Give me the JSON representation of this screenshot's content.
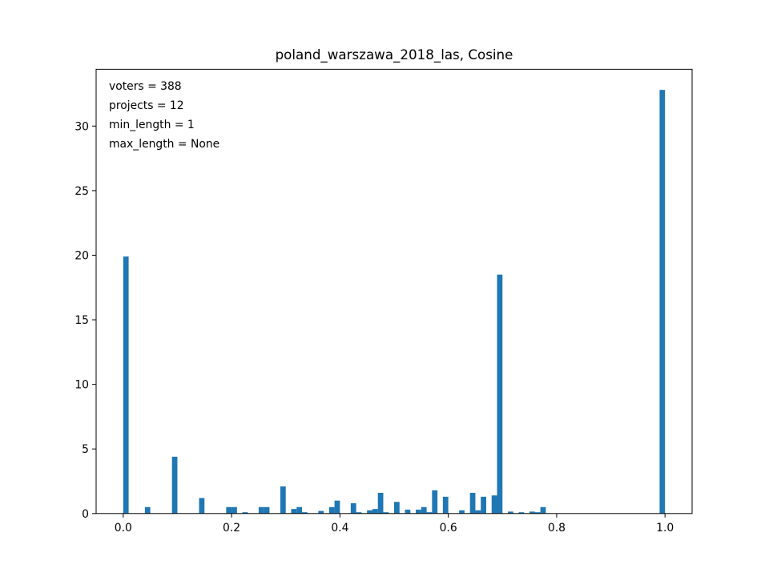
{
  "chart_data": {
    "type": "bar",
    "title": "poland_warszawa_2018_las, Cosine",
    "xlabel": "",
    "ylabel": "",
    "xlim": [
      -0.05,
      1.05
    ],
    "ylim": [
      0,
      34.4
    ],
    "bar_width": 0.01,
    "bar_color": "#1f77b4",
    "grid": false,
    "annotations": [
      "voters = 388",
      "projects = 12",
      "min_length = 1",
      "max_length = None"
    ],
    "x_ticks": [
      {
        "value": 0.0,
        "label": "0.0"
      },
      {
        "value": 0.2,
        "label": "0.2"
      },
      {
        "value": 0.4,
        "label": "0.4"
      },
      {
        "value": 0.6,
        "label": "0.6"
      },
      {
        "value": 0.8,
        "label": "0.8"
      },
      {
        "value": 1.0,
        "label": "1.0"
      }
    ],
    "y_ticks": [
      {
        "value": 0,
        "label": "0"
      },
      {
        "value": 5,
        "label": "5"
      },
      {
        "value": 10,
        "label": "10"
      },
      {
        "value": 15,
        "label": "15"
      },
      {
        "value": 20,
        "label": "20"
      },
      {
        "value": 25,
        "label": "25"
      },
      {
        "value": 30,
        "label": "30"
      }
    ],
    "x": [
      0.005,
      0.045,
      0.095,
      0.145,
      0.195,
      0.205,
      0.225,
      0.255,
      0.265,
      0.295,
      0.315,
      0.325,
      0.335,
      0.365,
      0.385,
      0.395,
      0.425,
      0.435,
      0.455,
      0.465,
      0.475,
      0.485,
      0.505,
      0.525,
      0.545,
      0.555,
      0.565,
      0.575,
      0.595,
      0.625,
      0.645,
      0.655,
      0.665,
      0.685,
      0.695,
      0.715,
      0.735,
      0.755,
      0.765,
      0.775,
      0.995
    ],
    "values": [
      19.9,
      0.5,
      4.4,
      1.2,
      0.5,
      0.5,
      0.1,
      0.5,
      0.5,
      2.1,
      0.35,
      0.5,
      0.1,
      0.2,
      0.5,
      1.0,
      0.8,
      0.1,
      0.25,
      0.35,
      1.6,
      0.1,
      0.9,
      0.3,
      0.3,
      0.5,
      0.1,
      1.8,
      1.3,
      0.25,
      1.6,
      0.25,
      1.3,
      1.4,
      18.5,
      0.15,
      0.1,
      0.15,
      0.1,
      0.5,
      32.8
    ]
  }
}
